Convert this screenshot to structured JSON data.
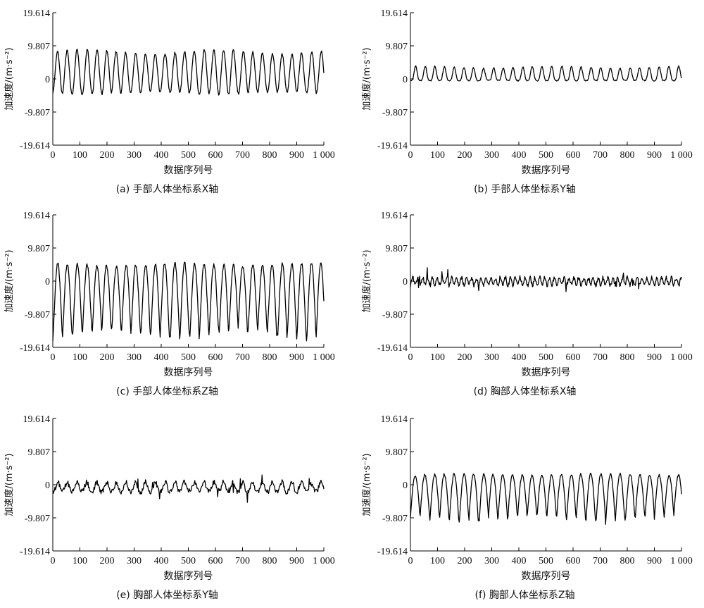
{
  "chart_data": [
    {
      "type": "line",
      "caption": "(a) 手部人体坐标系X轴",
      "xlabel": "数据序列号",
      "ylabel": "加速度/(m·s⁻²)",
      "xlim": [
        0,
        1000
      ],
      "ylim": [
        -19.614,
        19.614
      ],
      "xticks": [
        0,
        100,
        200,
        300,
        400,
        500,
        600,
        700,
        800,
        900,
        1000
      ],
      "xtick_labels": [
        "0",
        "100",
        "200",
        "300",
        "400",
        "500",
        "600",
        "700",
        "800",
        "900",
        "1 000"
      ],
      "yticks": [
        -19.614,
        -9.807,
        0,
        9.807,
        19.614
      ],
      "ytick_labels": [
        "-19.614",
        "-9.807",
        "0",
        "9.807",
        "19.614"
      ],
      "signal": {
        "period": 36,
        "low": -4.2,
        "high": 8.0,
        "jitter": 0.3,
        "duty": 0.5,
        "sharp": 1.0
      },
      "series": [
        {
          "name": "",
          "values": []
        }
      ]
    },
    {
      "type": "line",
      "caption": "(b) 手部人体坐标系Y轴",
      "xlabel": "数据序列号",
      "ylabel": "加速度/(m·s⁻²)",
      "xlim": [
        0,
        1000
      ],
      "ylim": [
        -19.614,
        19.614
      ],
      "xticks": [
        0,
        100,
        200,
        300,
        400,
        500,
        600,
        700,
        800,
        900,
        1000
      ],
      "xtick_labels": [
        "0",
        "100",
        "200",
        "300",
        "400",
        "500",
        "600",
        "700",
        "800",
        "900",
        "1 000"
      ],
      "yticks": [
        -19.614,
        -9.807,
        0,
        9.807,
        19.614
      ],
      "ytick_labels": [
        "-19.614",
        "-9.807",
        "0",
        "9.807",
        "19.614"
      ],
      "signal": {
        "period": 36,
        "low": -0.5,
        "high": 3.5,
        "jitter": 0.15,
        "duty": 0.35,
        "sharp": 2.0
      },
      "series": [
        {
          "name": "",
          "values": []
        }
      ]
    },
    {
      "type": "line",
      "caption": "(c) 手部人体坐标系Z轴",
      "xlabel": "数据序列号",
      "ylabel": "加速度/(m·s⁻²)",
      "xlim": [
        0,
        1000
      ],
      "ylim": [
        -19.614,
        19.614
      ],
      "xticks": [
        0,
        100,
        200,
        300,
        400,
        500,
        600,
        700,
        800,
        900,
        1000
      ],
      "xtick_labels": [
        "0",
        "100",
        "200",
        "300",
        "400",
        "500",
        "600",
        "700",
        "800",
        "900",
        "1 000"
      ],
      "yticks": [
        -19.614,
        -9.807,
        0,
        9.807,
        19.614
      ],
      "ytick_labels": [
        "-19.614",
        "-9.807",
        "0",
        "9.807",
        "19.614"
      ],
      "signal": {
        "period": 36,
        "low": -16.5,
        "high": 5.0,
        "jitter": 0.5,
        "duty": 0.5,
        "sharp": 0.6
      },
      "series": [
        {
          "name": "",
          "values": []
        }
      ]
    },
    {
      "type": "line",
      "caption": "(d) 胸部人体坐标系X轴",
      "xlabel": "数据序列号",
      "ylabel": "加速度/(m·s⁻²)",
      "xlim": [
        0,
        1000
      ],
      "ylim": [
        -19.614,
        19.614
      ],
      "xticks": [
        0,
        100,
        200,
        300,
        400,
        500,
        600,
        700,
        800,
        900,
        1000
      ],
      "xtick_labels": [
        "0",
        "100",
        "200",
        "300",
        "400",
        "500",
        "600",
        "700",
        "800",
        "900",
        "1 000"
      ],
      "yticks": [
        -19.614,
        -9.807,
        0,
        9.807,
        19.614
      ],
      "ytick_labels": [
        "-19.614",
        "-9.807",
        "0",
        "9.807",
        "19.614"
      ],
      "signal": {
        "period": 18,
        "low": -1.2,
        "high": 1.0,
        "jitter": 0.6,
        "duty": 0.5,
        "sharp": 1.0
      },
      "series": [
        {
          "name": "",
          "values": []
        }
      ]
    },
    {
      "type": "line",
      "caption": "(e) 胸部人体坐标系Y轴",
      "xlabel": "数据序列号",
      "ylabel": "加速度/(m·s⁻²)",
      "xlim": [
        0,
        1000
      ],
      "ylim": [
        -19.614,
        19.614
      ],
      "xticks": [
        0,
        100,
        200,
        300,
        400,
        500,
        600,
        700,
        800,
        900,
        1000
      ],
      "xtick_labels": [
        "0",
        "100",
        "200",
        "300",
        "400",
        "500",
        "600",
        "700",
        "800",
        "900",
        "1 000"
      ],
      "yticks": [
        -19.614,
        -9.807,
        0,
        9.807,
        19.614
      ],
      "ytick_labels": [
        "-19.614",
        "-9.807",
        "0",
        "9.807",
        "19.614"
      ],
      "signal": {
        "period": 36,
        "low": -2.0,
        "high": 0.8,
        "jitter": 0.7,
        "duty": 0.5,
        "sharp": 1.5
      },
      "series": [
        {
          "name": "",
          "values": []
        }
      ]
    },
    {
      "type": "line",
      "caption": "(f) 胸部人体坐标系Z轴",
      "xlabel": "数据序列号",
      "ylabel": "加速度/(m·s⁻²)",
      "xlim": [
        0,
        1000
      ],
      "ylim": [
        -19.614,
        19.614
      ],
      "xticks": [
        0,
        100,
        200,
        300,
        400,
        500,
        600,
        700,
        800,
        900,
        1000
      ],
      "xtick_labels": [
        "0",
        "100",
        "200",
        "300",
        "400",
        "500",
        "600",
        "700",
        "800",
        "900",
        "1 000"
      ],
      "yticks": [
        -19.614,
        -9.807,
        0,
        9.807,
        19.614
      ],
      "ytick_labels": [
        "-19.614",
        "-9.807",
        "0",
        "9.807",
        "19.614"
      ],
      "signal": {
        "period": 36,
        "low": -10.8,
        "high": 3.0,
        "jitter": 0.3,
        "duty": 0.5,
        "sharp": 0.5
      },
      "series": [
        {
          "name": "",
          "values": []
        }
      ]
    }
  ]
}
